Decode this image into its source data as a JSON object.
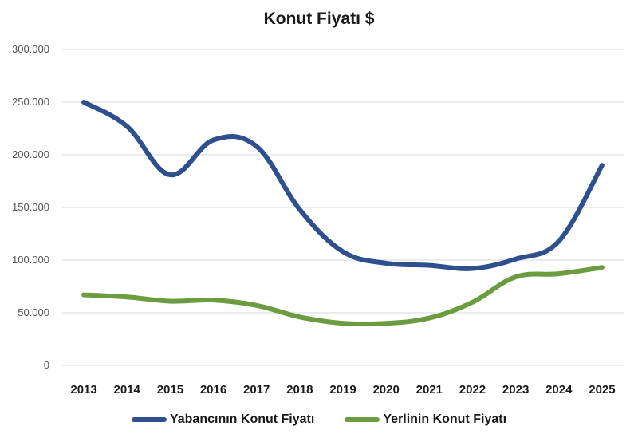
{
  "chart_data": {
    "type": "line",
    "title": "Konut Fiyatı $",
    "xlabel": "",
    "ylabel": "",
    "categories": [
      "2013",
      "2014",
      "2015",
      "2016",
      "2017",
      "2018",
      "2019",
      "2020",
      "2021",
      "2022",
      "2023",
      "2024",
      "2025"
    ],
    "ylim": [
      0,
      300000
    ],
    "yticks": [
      0,
      50000,
      100000,
      150000,
      200000,
      250000,
      300000
    ],
    "ytick_labels": [
      "0",
      "50.000",
      "100.000",
      "150.000",
      "200.000",
      "250.000",
      "300.000"
    ],
    "grid": true,
    "legend_position": "bottom",
    "series": [
      {
        "name": "Yabancının Konut Fiyatı",
        "color": "#2f4f8f",
        "values": [
          250000,
          227000,
          181000,
          214000,
          208000,
          148000,
          108000,
          97000,
          95000,
          92000,
          101000,
          118000,
          190000
        ]
      },
      {
        "name": "Yerlinin Konut Fiyatı",
        "color": "#6b9c3f",
        "values": [
          67000,
          65000,
          61000,
          62000,
          57000,
          46000,
          40000,
          40000,
          45000,
          60000,
          84000,
          87000,
          93000
        ]
      }
    ]
  }
}
